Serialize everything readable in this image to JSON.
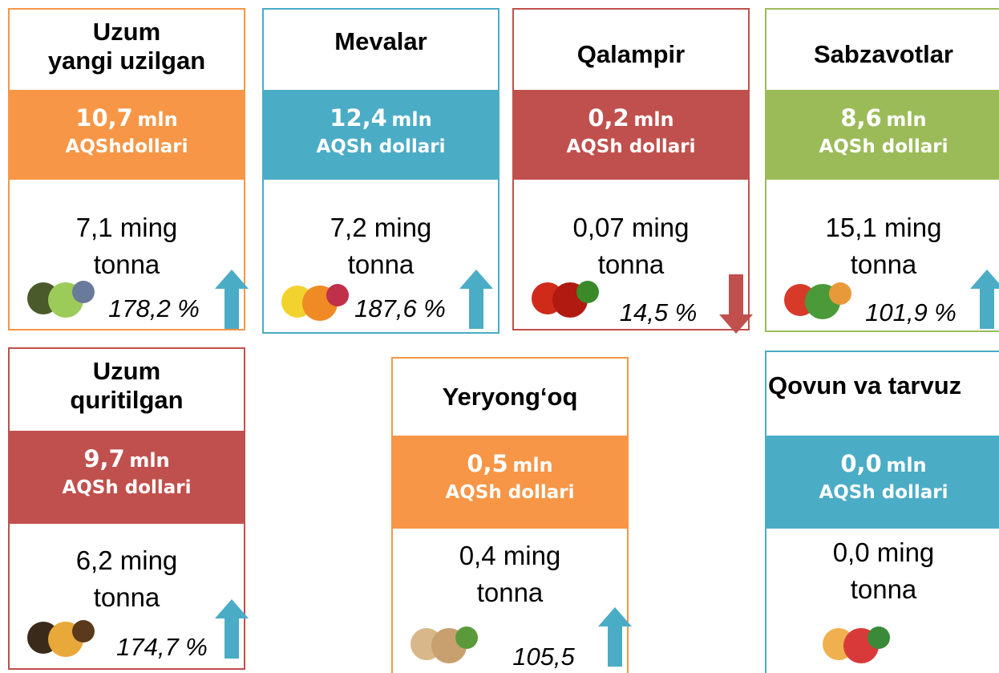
{
  "cards": [
    {
      "title": [
        "Uzum",
        "yangi uzilgan"
      ],
      "color": "#f79646",
      "value": "10,7",
      "value_unit": "mln",
      "currency": "AQShdollari",
      "amount": "7,1 ming",
      "unit": "tonna",
      "percent": "178,2 %"
    },
    {
      "title": [
        "Mevalar"
      ],
      "color": "#4bacc6",
      "value": "12,4",
      "value_unit": "mln",
      "currency": "AQSh dollari",
      "amount": "7,2 ming",
      "unit": "tonna",
      "percent": "187,6 %"
    },
    {
      "title": [
        "Qalampir"
      ],
      "color": "#c0504d",
      "value": "0,2",
      "value_unit": "mln",
      "currency": "AQSh dollari",
      "amount": "0,07 ming",
      "unit": "tonna",
      "percent": "14,5 %"
    },
    {
      "title": [
        "Sabzavotlar"
      ],
      "color": "#9bbb59",
      "value": "8,6",
      "value_unit": "mln",
      "currency": "AQSh dollari",
      "amount": "15,1 ming",
      "unit": "tonna",
      "percent": "101,9 %"
    },
    {
      "title": [
        "Uzum",
        "quritilgan"
      ],
      "color": "#c0504d",
      "value": "9,7",
      "value_unit": "mln",
      "currency": "AQSh dollari",
      "amount": "6,2 ming",
      "unit": "tonna",
      "percent": "174,7 %"
    },
    {
      "title": [
        "Yeryong‘oq"
      ],
      "color": "#f79646",
      "value": "0,5",
      "value_unit": "mln",
      "currency": "AQSh dollari",
      "amount": "0,4 ming",
      "unit": "tonna",
      "percent": "105,5"
    },
    {
      "title": [
        "Qovun va tarvuz"
      ],
      "color": "#4bacc6",
      "value": "0,0",
      "value_unit": "mln",
      "currency": "AQSh dollari",
      "amount": "0,0 ming",
      "unit": "tonna"
    }
  ]
}
